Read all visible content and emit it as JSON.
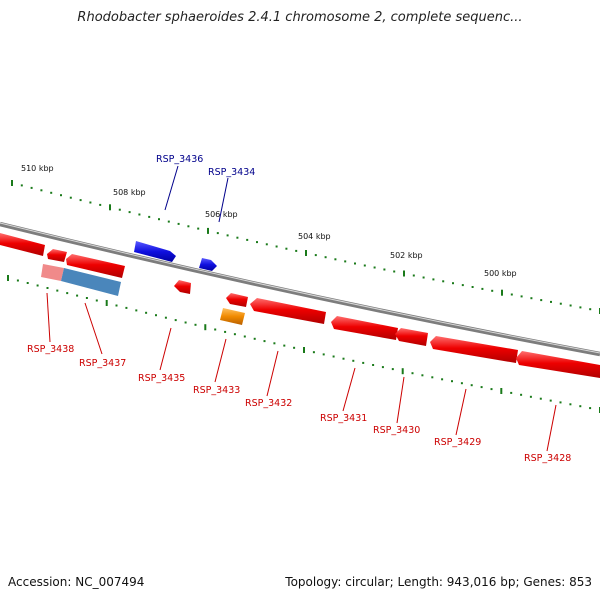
{
  "title": "Rhodobacter sphaeroides 2.4.1 chromosome 2, complete sequenc...",
  "footer": {
    "accession": "Accession: NC_007494",
    "summary": "Topology: circular; Length: 943,016 bp; Genes: 853"
  },
  "colors": {
    "backbone": "#7d7d7d",
    "tick": "#1a7a1a",
    "forward_gene": "#1010e0",
    "reverse_gene": "#ee0000",
    "orf_blue": "#4a86bb",
    "orf_pink": "#f08a8a",
    "orange_gene": "#f08a00",
    "forward_label": "#00008b",
    "reverse_label": "#cc0000"
  },
  "scale_labels": [
    "510 kbp",
    "508 kbp",
    "506 kbp",
    "504 kbp",
    "502 kbp",
    "500 kbp"
  ],
  "gene_labels": {
    "forward": [
      "RSP_3436",
      "RSP_3434"
    ],
    "reverse": [
      "RSP_3438",
      "RSP_3437",
      "RSP_3435",
      "RSP_3433",
      "RSP_3432",
      "RSP_3431",
      "RSP_3430",
      "RSP_3429",
      "RSP_3428"
    ]
  }
}
